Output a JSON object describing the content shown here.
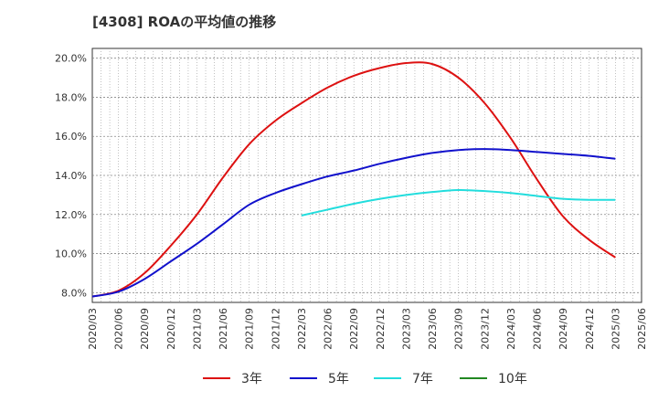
{
  "title": "[4308]  ROAの平均値の推移",
  "chart_data": {
    "type": "line",
    "title": "[4308]  ROAの平均値の推移",
    "xlabel": "",
    "ylabel": "",
    "ylim": [
      7.5,
      20.5
    ],
    "yticks": [
      8,
      10,
      12,
      14,
      16,
      18,
      20
    ],
    "ytick_labels": [
      "8.0%",
      "10.0%",
      "12.0%",
      "14.0%",
      "16.0%",
      "18.0%",
      "20.0%"
    ],
    "xticks": [
      "2020/03",
      "2020/06",
      "2020/09",
      "2020/12",
      "2021/03",
      "2021/06",
      "2021/09",
      "2021/12",
      "2022/03",
      "2022/06",
      "2022/09",
      "2022/12",
      "2023/03",
      "2023/06",
      "2023/09",
      "2023/12",
      "2024/03",
      "2024/06",
      "2024/09",
      "2024/12",
      "2025/03",
      "2025/06"
    ],
    "grid": true,
    "legend_position": "bottom",
    "series": [
      {
        "name": "3年",
        "color": "#dd1111",
        "x": [
          "2020/03",
          "2020/06",
          "2020/09",
          "2020/12",
          "2021/03",
          "2021/06",
          "2021/09",
          "2021/12",
          "2022/03",
          "2022/06",
          "2022/09",
          "2022/12",
          "2023/03",
          "2023/06",
          "2023/09",
          "2023/12",
          "2024/03",
          "2024/06",
          "2024/09",
          "2024/12",
          "2025/03"
        ],
        "values": [
          7.8,
          8.1,
          9.0,
          10.4,
          12.0,
          13.9,
          15.6,
          16.8,
          17.7,
          18.5,
          19.1,
          19.5,
          19.75,
          19.7,
          19.0,
          17.7,
          15.9,
          13.8,
          11.9,
          10.7,
          9.8
        ]
      },
      {
        "name": "5年",
        "color": "#1111cc",
        "x": [
          "2020/03",
          "2020/06",
          "2020/09",
          "2020/12",
          "2021/03",
          "2021/06",
          "2021/09",
          "2021/12",
          "2022/03",
          "2022/06",
          "2022/09",
          "2022/12",
          "2023/03",
          "2023/06",
          "2023/09",
          "2023/12",
          "2024/03",
          "2024/06",
          "2024/09",
          "2024/12",
          "2025/03"
        ],
        "values": [
          7.8,
          8.05,
          8.7,
          9.6,
          10.5,
          11.5,
          12.5,
          13.1,
          13.55,
          13.95,
          14.25,
          14.6,
          14.9,
          15.15,
          15.3,
          15.35,
          15.3,
          15.2,
          15.1,
          15.0,
          14.85
        ]
      },
      {
        "name": "7年",
        "color": "#22dddd",
        "x": [
          "2022/03",
          "2022/06",
          "2022/09",
          "2022/12",
          "2023/03",
          "2023/06",
          "2023/09",
          "2023/12",
          "2024/03",
          "2024/06",
          "2024/09",
          "2024/12",
          "2025/03"
        ],
        "values": [
          11.95,
          12.25,
          12.55,
          12.8,
          13.0,
          13.15,
          13.25,
          13.2,
          13.1,
          12.95,
          12.8,
          12.75,
          12.75
        ]
      },
      {
        "name": "10年",
        "color": "#228822",
        "x": [],
        "values": []
      }
    ]
  }
}
